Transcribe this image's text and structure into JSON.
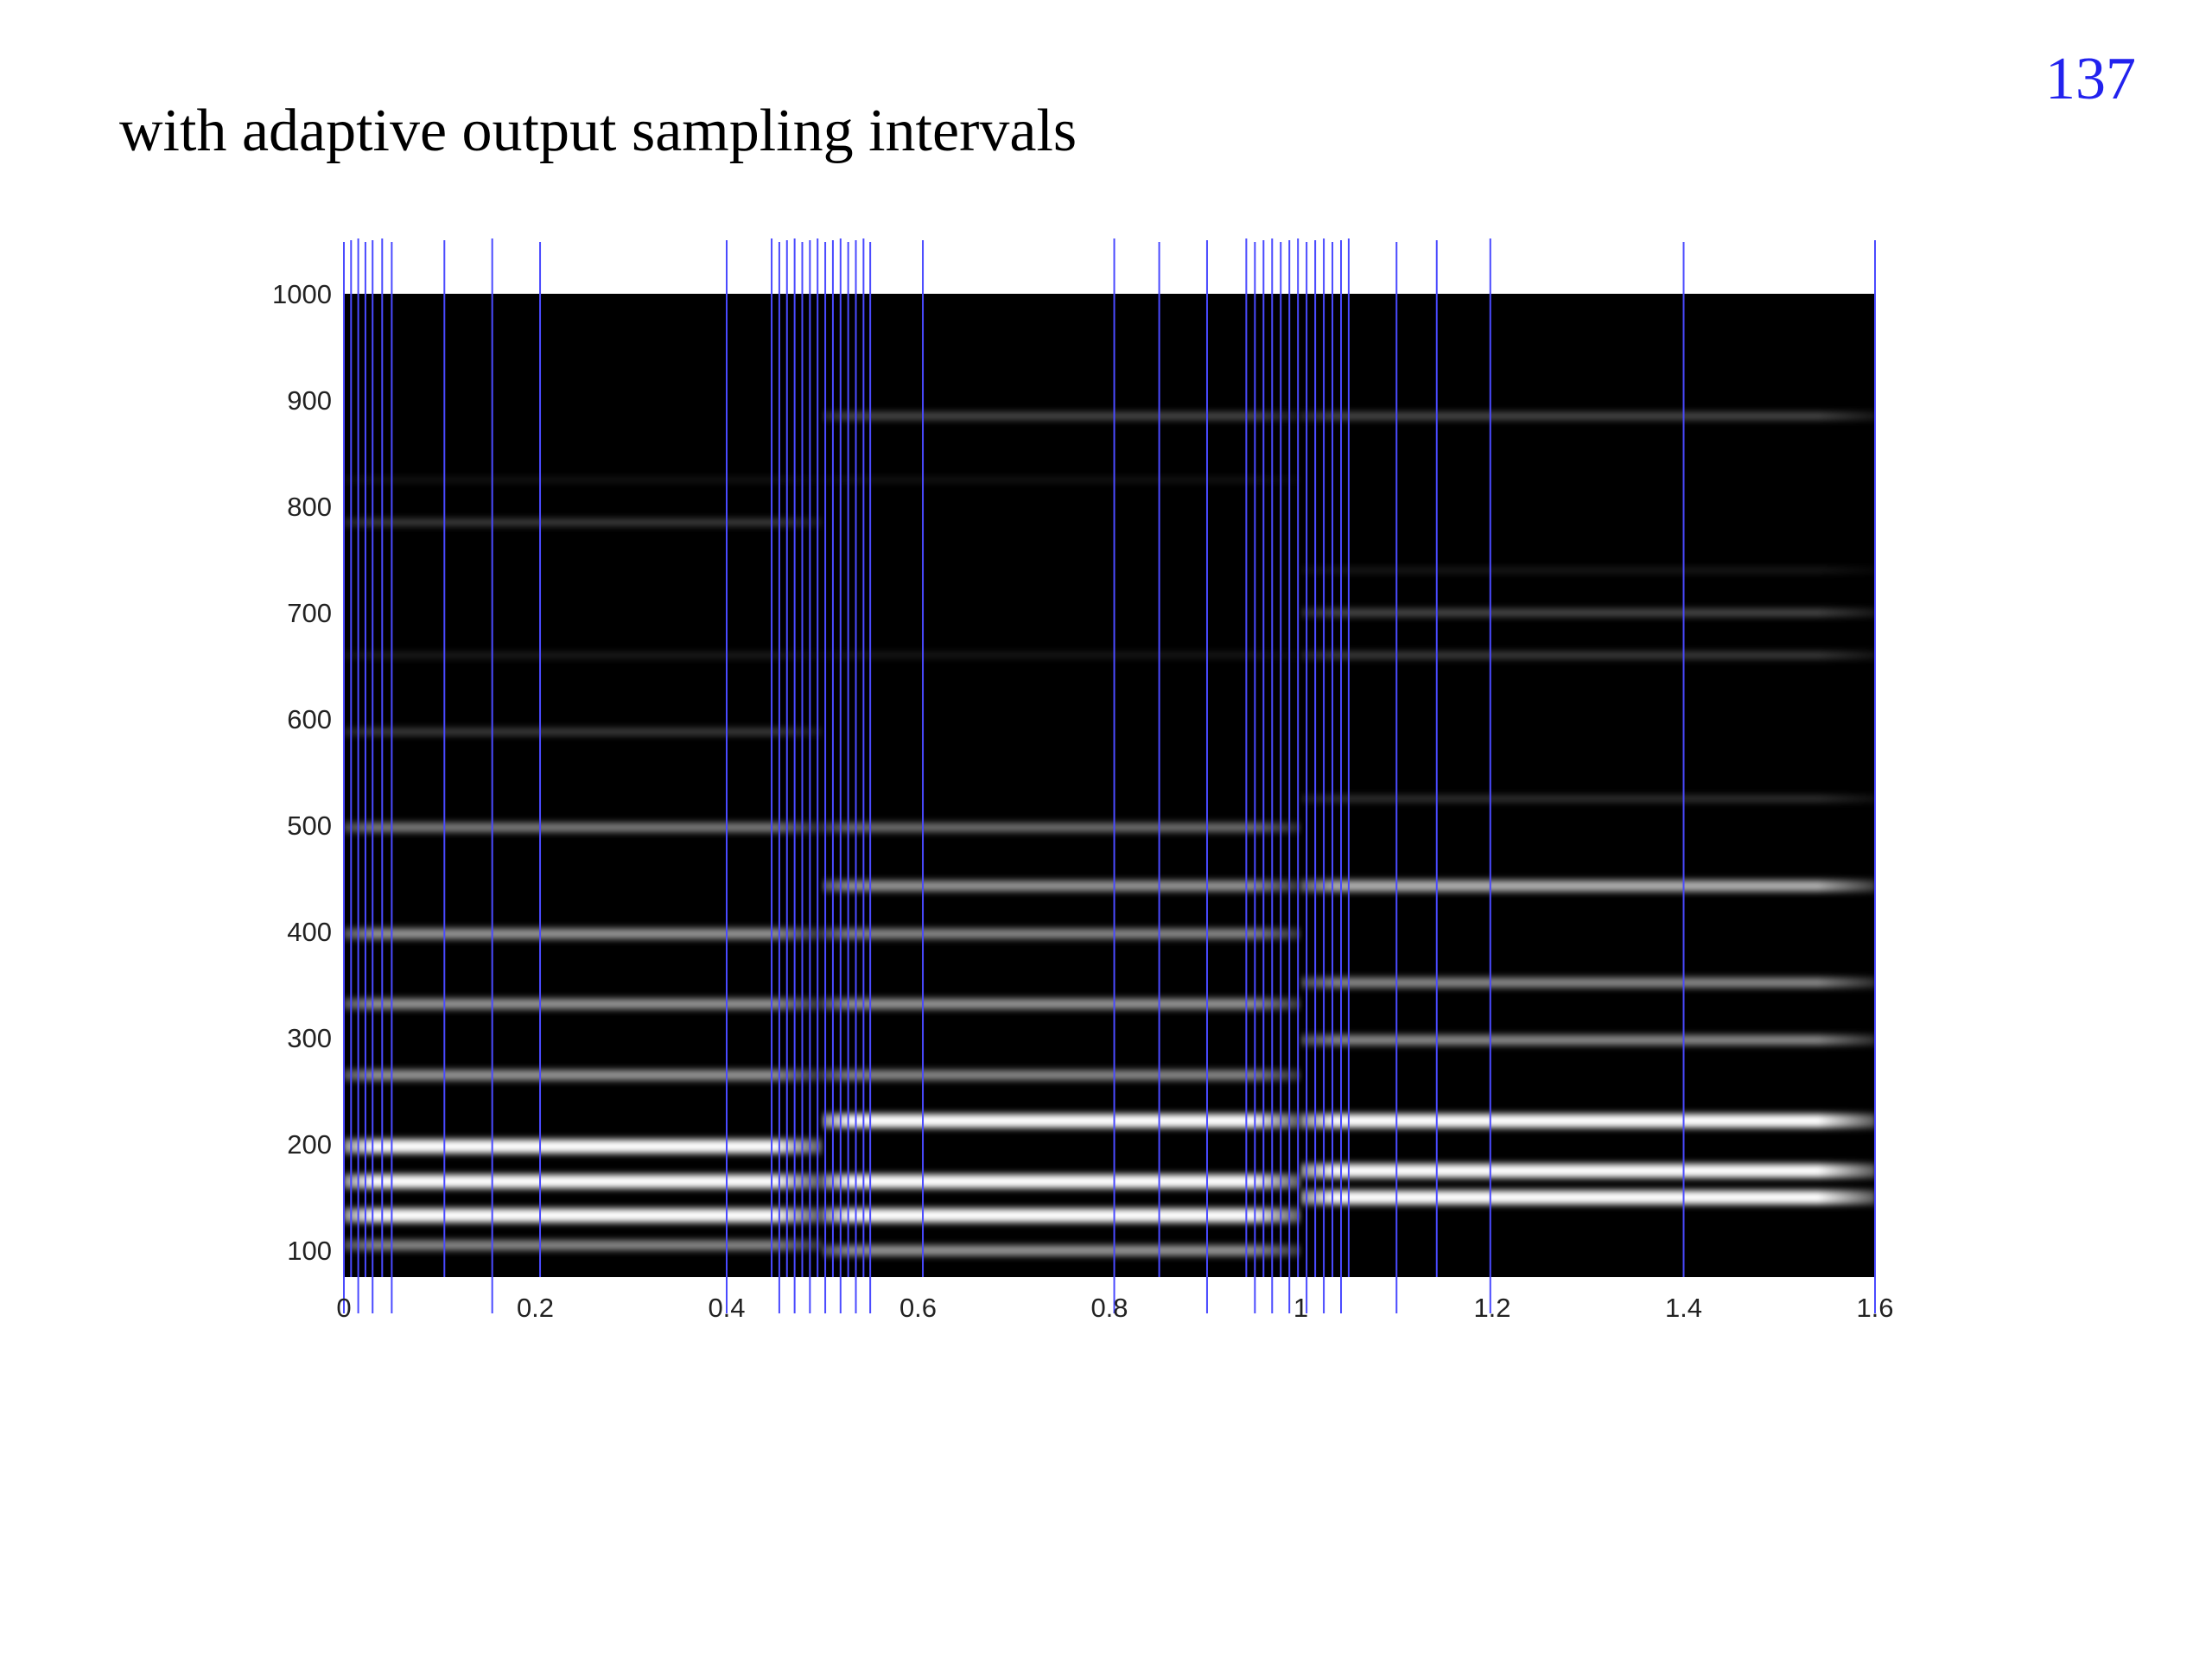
{
  "slide": {
    "title": "with adaptive output sampling intervals",
    "page_number": "137"
  },
  "colors": {
    "background": "#000000",
    "sampling_line": "#4a4aff",
    "partial": "#ffffff"
  },
  "chart_data": {
    "type": "heatmap",
    "title": "",
    "xlabel": "",
    "ylabel": "",
    "xlim": [
      0,
      1.6
    ],
    "ylim": [
      75,
      1000
    ],
    "x_ticks": [
      0,
      0.2,
      0.4,
      0.6,
      0.8,
      1,
      1.2,
      1.4,
      1.6
    ],
    "x_tick_labels": [
      "0",
      "0.2",
      "0.4",
      "0.6",
      "0.8",
      "1",
      "1.2",
      "1.4",
      "1.6"
    ],
    "y_ticks": [
      100,
      200,
      300,
      400,
      500,
      600,
      700,
      800,
      900,
      1000
    ],
    "y_tick_labels": [
      "100",
      "200",
      "300",
      "400",
      "500",
      "600",
      "700",
      "800",
      "900",
      "1000"
    ],
    "grid": false,
    "segments": [
      {
        "x_start": 0,
        "x_end": 0.5,
        "partials": [
          {
            "freq": 105,
            "intensity": 0.55
          },
          {
            "freq": 133,
            "intensity": 1.0
          },
          {
            "freq": 165,
            "intensity": 1.0
          },
          {
            "freq": 198,
            "intensity": 1.0
          },
          {
            "freq": 265,
            "intensity": 0.6
          },
          {
            "freq": 332,
            "intensity": 0.6
          },
          {
            "freq": 398,
            "intensity": 0.6
          },
          {
            "freq": 498,
            "intensity": 0.5
          },
          {
            "freq": 588,
            "intensity": 0.25
          },
          {
            "freq": 660,
            "intensity": 0.12
          },
          {
            "freq": 785,
            "intensity": 0.25
          },
          {
            "freq": 825,
            "intensity": 0.08
          }
        ]
      },
      {
        "x_start": 0.5,
        "x_end": 1.0,
        "partials": [
          {
            "freq": 100,
            "intensity": 0.6
          },
          {
            "freq": 133,
            "intensity": 1.0
          },
          {
            "freq": 165,
            "intensity": 1.0
          },
          {
            "freq": 222,
            "intensity": 1.0
          },
          {
            "freq": 265,
            "intensity": 0.55
          },
          {
            "freq": 332,
            "intensity": 0.6
          },
          {
            "freq": 398,
            "intensity": 0.55
          },
          {
            "freq": 443,
            "intensity": 0.6
          },
          {
            "freq": 498,
            "intensity": 0.45
          },
          {
            "freq": 660,
            "intensity": 0.1
          },
          {
            "freq": 825,
            "intensity": 0.08
          },
          {
            "freq": 885,
            "intensity": 0.3
          }
        ]
      },
      {
        "x_start": 1.0,
        "x_end": 1.6,
        "partials": [
          {
            "freq": 150,
            "intensity": 1.0
          },
          {
            "freq": 175,
            "intensity": 1.0
          },
          {
            "freq": 222,
            "intensity": 1.0
          },
          {
            "freq": 298,
            "intensity": 0.55
          },
          {
            "freq": 352,
            "intensity": 0.55
          },
          {
            "freq": 443,
            "intensity": 0.7
          },
          {
            "freq": 525,
            "intensity": 0.2
          },
          {
            "freq": 660,
            "intensity": 0.25
          },
          {
            "freq": 700,
            "intensity": 0.3
          },
          {
            "freq": 740,
            "intensity": 0.1
          },
          {
            "freq": 885,
            "intensity": 0.3
          }
        ]
      }
    ],
    "sampling_times": [
      0,
      0.0075,
      0.015,
      0.0225,
      0.03,
      0.04,
      0.05,
      0.105,
      0.155,
      0.205,
      0.4,
      0.447,
      0.455,
      0.463,
      0.471,
      0.479,
      0.487,
      0.495,
      0.503,
      0.511,
      0.519,
      0.527,
      0.535,
      0.543,
      0.55,
      0.605,
      0.805,
      0.852,
      0.902,
      0.943,
      0.952,
      0.961,
      0.97,
      0.979,
      0.988,
      0.997,
      1.006,
      1.015,
      1.024,
      1.033,
      1.042,
      1.05,
      1.1,
      1.142,
      1.198,
      1.4,
      1.6
    ]
  }
}
